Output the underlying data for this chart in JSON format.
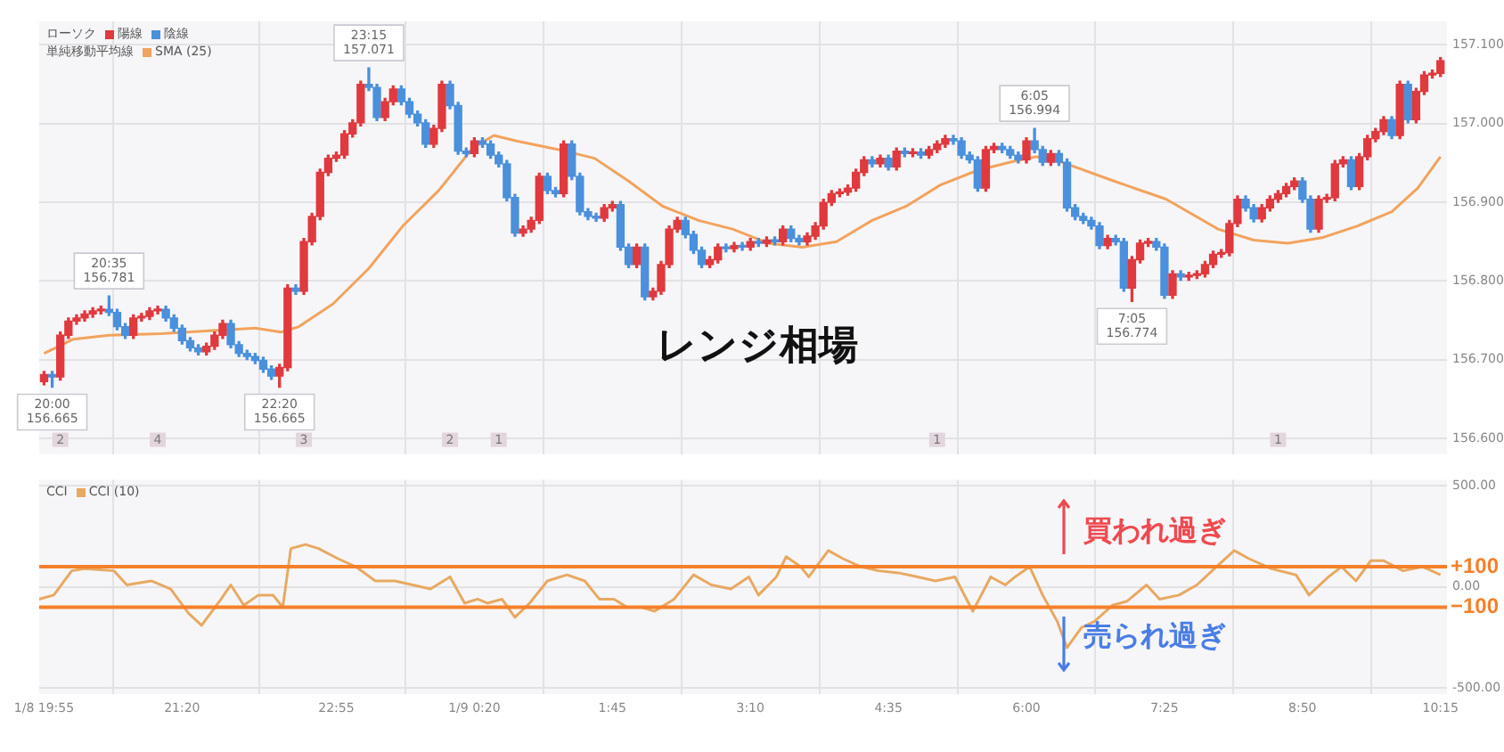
{
  "chart_data": [
    {
      "type": "candlestick",
      "xlim": [
        "--01-08T19:52",
        "--01-09T10:19"
      ],
      "xticks": [
        {
          "value": "--01-08T19:55",
          "label": null
        },
        {
          "value": "--01-08T21:20",
          "label": null
        },
        {
          "value": "--01-08T22:55",
          "label": null
        },
        {
          "value": "--01-09T00:20",
          "label": null
        },
        {
          "value": "--01-09T01:45",
          "label": null
        },
        {
          "value": "--01-09T03:10",
          "label": null
        },
        {
          "value": "--01-09T04:35",
          "label": null
        },
        {
          "value": "--01-09T06:00",
          "label": null
        },
        {
          "value": "--01-09T07:25",
          "label": null
        },
        {
          "value": "--01-09T08:50",
          "label": null
        },
        {
          "value": "--01-09T10:15",
          "label": null
        }
      ],
      "ylim": [
        156.58,
        157.13
      ],
      "yticks": [
        {
          "value": 156.6,
          "label": "156.600"
        },
        {
          "value": 156.7,
          "label": "156.700"
        },
        {
          "value": 156.8,
          "label": "156.800"
        },
        {
          "value": 156.9,
          "label": "156.900"
        },
        {
          "value": 157.0,
          "label": "157.000"
        },
        {
          "value": 157.1,
          "label": "157.100"
        }
      ],
      "tick_labels": "y",
      "grid": true,
      "legend": "top left",
      "series": [
        {
          "name": "陽線",
          "color": "#e0393e",
          "x": [
            "--01-08T19:55",
            "--01-08T20:05",
            "--01-08T20:10",
            "--01-08T20:15",
            "--01-08T20:20",
            "--01-08T20:25",
            "--01-08T20:30",
            "--01-08T20:50",
            "--01-08T20:55",
            "--01-08T21:00",
            "--01-08T21:05",
            "--01-08T21:35",
            "--01-08T21:40",
            "--01-08T21:45",
            "--01-08T22:20",
            "--01-08T22:25",
            "--01-08T22:35",
            "--01-08T22:40",
            "--01-08T22:45",
            "--01-08T22:50",
            "--01-08T22:55",
            "--01-08T23:00",
            "--01-08T23:05",
            "--01-08T23:10",
            "--01-08T23:25",
            "--01-08T23:30",
            "--01-08T23:55",
            "--01-09T00:00",
            "--01-09T00:20",
            "--01-09T00:50",
            "--01-09T00:55",
            "--01-09T01:00",
            "--01-09T01:15",
            "--01-09T01:40",
            "--01-09T01:45",
            "--01-09T02:00",
            "--01-09T02:10",
            "--01-09T02:15",
            "--01-09T02:20",
            "--01-09T02:25",
            "--01-09T02:45",
            "--01-09T02:50",
            "--01-09T03:00",
            "--01-09T03:10",
            "--01-09T03:20",
            "--01-09T03:30",
            "--01-09T03:45",
            "--01-09T03:50",
            "--01-09T03:55",
            "--01-09T04:00",
            "--01-09T04:05",
            "--01-09T04:10",
            "--01-09T04:15",
            "--01-09T04:20",
            "--01-09T04:30",
            "--01-09T04:40",
            "--01-09T04:50",
            "--01-09T05:00",
            "--01-09T05:05",
            "--01-09T05:10",
            "--01-09T05:35",
            "--01-09T05:40",
            "--01-09T06:00",
            "--01-09T06:15",
            "--01-09T06:50",
            "--01-09T07:05",
            "--01-09T07:10",
            "--01-09T07:15",
            "--01-09T07:30",
            "--01-09T07:40",
            "--01-09T07:45",
            "--01-09T07:50",
            "--01-09T07:55",
            "--01-09T08:00",
            "--01-09T08:05",
            "--01-09T08:10",
            "--01-09T08:25",
            "--01-09T08:30",
            "--01-09T08:35",
            "--01-09T08:40",
            "--01-09T08:45",
            "--01-09T09:00",
            "--01-09T09:05",
            "--01-09T09:10",
            "--01-09T09:15",
            "--01-09T09:25",
            "--01-09T09:30",
            "--01-09T09:35",
            "--01-09T09:40",
            "--01-09T09:50",
            "--01-09T10:00",
            "--01-09T10:05",
            "--01-09T10:10",
            "--01-09T10:15"
          ],
          "ohlc": [
            [
              156.672,
              156.685,
              156.668,
              156.681
            ],
            [
              156.678,
              156.735,
              156.674,
              156.731
            ],
            [
              156.731,
              156.753,
              156.727,
              156.749
            ],
            [
              156.749,
              156.757,
              156.745,
              156.753
            ],
            [
              156.753,
              156.762,
              156.749,
              156.758
            ],
            [
              156.758,
              156.766,
              156.754,
              156.762
            ],
            [
              156.762,
              156.768,
              156.758,
              156.764
            ],
            [
              156.731,
              156.757,
              156.727,
              156.753
            ],
            [
              156.753,
              156.759,
              156.749,
              156.755
            ],
            [
              156.755,
              156.766,
              156.751,
              156.762
            ],
            [
              156.762,
              156.768,
              156.758,
              156.764
            ],
            [
              156.71,
              156.721,
              156.706,
              156.717
            ],
            [
              156.717,
              156.735,
              156.713,
              156.731
            ],
            [
              156.731,
              156.75,
              156.727,
              156.746
            ],
            [
              156.679,
              156.694,
              156.665,
              156.69
            ],
            [
              156.69,
              156.795,
              156.686,
              156.791
            ],
            [
              156.787,
              156.854,
              156.783,
              156.85
            ],
            [
              156.85,
              156.886,
              156.846,
              156.882
            ],
            [
              156.882,
              156.942,
              156.878,
              156.938
            ],
            [
              156.938,
              156.96,
              156.934,
              156.956
            ],
            [
              156.956,
              156.964,
              156.952,
              156.96
            ],
            [
              156.96,
              156.991,
              156.956,
              156.987
            ],
            [
              156.987,
              157.005,
              156.983,
              157.001
            ],
            [
              157.001,
              157.054,
              156.997,
              157.05
            ],
            [
              157.008,
              157.032,
              157.004,
              157.028
            ],
            [
              157.028,
              157.048,
              157.024,
              157.044
            ],
            [
              156.974,
              156.998,
              156.97,
              156.994
            ],
            [
              156.994,
              157.054,
              156.99,
              157.05
            ],
            [
              156.962,
              156.982,
              156.958,
              156.978
            ],
            [
              156.861,
              156.87,
              156.857,
              156.866
            ],
            [
              156.866,
              156.881,
              156.862,
              156.877
            ],
            [
              156.877,
              156.937,
              156.873,
              156.933
            ],
            [
              156.911,
              156.978,
              156.907,
              156.974
            ],
            [
              156.88,
              156.897,
              156.876,
              156.893
            ],
            [
              156.893,
              156.901,
              156.889,
              156.897
            ],
            [
              156.821,
              156.847,
              156.817,
              156.843
            ],
            [
              156.78,
              156.791,
              156.776,
              156.787
            ],
            [
              156.787,
              156.825,
              156.783,
              156.821
            ],
            [
              156.821,
              156.87,
              156.817,
              156.866
            ],
            [
              156.866,
              156.881,
              156.862,
              156.877
            ],
            [
              156.821,
              156.831,
              156.817,
              156.827
            ],
            [
              156.827,
              156.847,
              156.823,
              156.843
            ],
            [
              156.841,
              156.849,
              156.837,
              156.845
            ],
            [
              156.843,
              156.854,
              156.839,
              156.85
            ],
            [
              156.848,
              156.856,
              156.844,
              156.852
            ],
            [
              156.85,
              156.87,
              156.846,
              156.866
            ],
            [
              156.85,
              156.861,
              156.846,
              156.857
            ],
            [
              156.857,
              156.874,
              156.853,
              156.87
            ],
            [
              156.87,
              156.904,
              156.866,
              156.9
            ],
            [
              156.9,
              156.915,
              156.896,
              156.911
            ],
            [
              156.911,
              156.917,
              156.907,
              156.913
            ],
            [
              156.913,
              156.922,
              156.909,
              156.918
            ],
            [
              156.918,
              156.942,
              156.914,
              156.938
            ],
            [
              156.938,
              156.958,
              156.934,
              156.954
            ],
            [
              156.949,
              156.96,
              156.945,
              156.956
            ],
            [
              156.945,
              156.969,
              156.941,
              156.965
            ],
            [
              156.962,
              156.968,
              156.958,
              156.964
            ],
            [
              156.96,
              156.971,
              156.956,
              156.967
            ],
            [
              156.967,
              156.978,
              156.963,
              156.974
            ],
            [
              156.974,
              156.985,
              156.97,
              156.981
            ],
            [
              156.918,
              156.971,
              156.914,
              156.967
            ],
            [
              156.967,
              156.975,
              156.963,
              156.971
            ],
            [
              156.954,
              156.982,
              156.95,
              156.978
            ],
            [
              156.951,
              156.966,
              156.947,
              156.962
            ],
            [
              156.845,
              156.858,
              156.841,
              156.854
            ],
            [
              156.791,
              156.831,
              156.774,
              156.827
            ],
            [
              156.827,
              156.852,
              156.823,
              156.848
            ],
            [
              156.848,
              156.854,
              156.844,
              156.85
            ],
            [
              156.782,
              156.813,
              156.778,
              156.809
            ],
            [
              156.805,
              156.811,
              156.801,
              156.807
            ],
            [
              156.807,
              156.813,
              156.803,
              156.809
            ],
            [
              156.809,
              156.825,
              156.805,
              156.821
            ],
            [
              156.821,
              156.838,
              156.817,
              156.834
            ],
            [
              156.834,
              156.84,
              156.83,
              156.836
            ],
            [
              156.836,
              156.877,
              156.832,
              156.873
            ],
            [
              156.873,
              156.908,
              156.869,
              156.904
            ],
            [
              156.879,
              156.897,
              156.875,
              156.893
            ],
            [
              156.893,
              156.908,
              156.889,
              156.904
            ],
            [
              156.904,
              156.915,
              156.9,
              156.911
            ],
            [
              156.911,
              156.924,
              156.907,
              156.92
            ],
            [
              156.92,
              156.931,
              156.916,
              156.927
            ],
            [
              156.866,
              156.908,
              156.862,
              156.904
            ],
            [
              156.904,
              156.91,
              156.9,
              156.906
            ],
            [
              156.906,
              156.953,
              156.902,
              156.949
            ],
            [
              156.949,
              156.958,
              156.945,
              156.954
            ],
            [
              156.92,
              156.962,
              156.916,
              156.958
            ],
            [
              156.958,
              156.985,
              156.954,
              156.981
            ],
            [
              156.981,
              156.994,
              156.977,
              156.99
            ],
            [
              156.99,
              157.009,
              156.986,
              157.005
            ],
            [
              156.985,
              157.054,
              156.981,
              157.05
            ],
            [
              157.005,
              157.045,
              157.001,
              157.041
            ],
            [
              157.041,
              157.066,
              157.037,
              157.062
            ],
            [
              157.062,
              157.068,
              157.058,
              157.064
            ],
            [
              157.064,
              157.084,
              157.06,
              157.08
            ]
          ]
        },
        {
          "name": "陰線",
          "color": "#4a90dc",
          "x": [
            "--01-08T20:00",
            "--01-08T20:35",
            "--01-08T20:40",
            "--01-08T20:45",
            "--01-08T21:10",
            "--01-08T21:15",
            "--01-08T21:20",
            "--01-08T21:25",
            "--01-08T21:30",
            "--01-08T21:50",
            "--01-08T21:55",
            "--01-08T22:00",
            "--01-08T22:05",
            "--01-08T22:10",
            "--01-08T22:15",
            "--01-08T22:30",
            "--01-08T23:15",
            "--01-08T23:20",
            "--01-08T23:35",
            "--01-08T23:40",
            "--01-08T23:45",
            "--01-08T23:50",
            "--01-09T00:05",
            "--01-09T00:10",
            "--01-09T00:15",
            "--01-09T00:25",
            "--01-09T00:30",
            "--01-09T00:35",
            "--01-09T00:40",
            "--01-09T00:45",
            "--01-09T01:05",
            "--01-09T01:10",
            "--01-09T01:20",
            "--01-09T01:25",
            "--01-09T01:30",
            "--01-09T01:35",
            "--01-09T01:50",
            "--01-09T01:55",
            "--01-09T02:05",
            "--01-09T02:30",
            "--01-09T02:35",
            "--01-09T02:40",
            "--01-09T02:55",
            "--01-09T03:05",
            "--01-09T03:15",
            "--01-09T03:25",
            "--01-09T03:35",
            "--01-09T03:40",
            "--01-09T04:25",
            "--01-09T04:35",
            "--01-09T04:45",
            "--01-09T04:55",
            "--01-09T05:15",
            "--01-09T05:20",
            "--01-09T05:25",
            "--01-09T05:30",
            "--01-09T05:45",
            "--01-09T05:50",
            "--01-09T05:55",
            "--01-09T06:05",
            "--01-09T06:10",
            "--01-09T06:20",
            "--01-09T06:25",
            "--01-09T06:30",
            "--01-09T06:35",
            "--01-09T06:40",
            "--01-09T06:45",
            "--01-09T06:55",
            "--01-09T07:00",
            "--01-09T07:20",
            "--01-09T07:25",
            "--01-09T07:35",
            "--01-09T08:15",
            "--01-09T08:20",
            "--01-09T08:50",
            "--01-09T08:55",
            "--01-09T09:20",
            "--01-09T09:45",
            "--01-09T09:55"
          ],
          "ohlc": [
            [
              156.681,
              156.685,
              156.665,
              156.678
            ],
            [
              156.764,
              156.781,
              156.756,
              156.76
            ],
            [
              156.76,
              156.764,
              156.738,
              156.742
            ],
            [
              156.742,
              156.746,
              156.727,
              156.731
            ],
            [
              156.764,
              156.768,
              156.749,
              156.753
            ],
            [
              156.753,
              156.757,
              156.736,
              156.74
            ],
            [
              156.74,
              156.744,
              156.72,
              156.724
            ],
            [
              156.724,
              156.728,
              156.711,
              156.715
            ],
            [
              156.715,
              156.719,
              156.706,
              156.71
            ],
            [
              156.746,
              156.75,
              156.715,
              156.719
            ],
            [
              156.719,
              156.723,
              156.704,
              156.708
            ],
            [
              156.708,
              156.712,
              156.7,
              156.704
            ],
            [
              156.704,
              156.708,
              156.695,
              156.699
            ],
            [
              156.699,
              156.703,
              156.684,
              156.688
            ],
            [
              156.688,
              156.692,
              156.675,
              156.679
            ],
            [
              156.791,
              156.795,
              156.783,
              156.787
            ],
            [
              157.05,
              157.071,
              157.042,
              157.046
            ],
            [
              157.046,
              157.05,
              157.004,
              157.008
            ],
            [
              157.044,
              157.048,
              157.024,
              157.028
            ],
            [
              157.028,
              157.032,
              157.008,
              157.012
            ],
            [
              157.012,
              157.016,
              156.997,
              157.001
            ],
            [
              157.001,
              157.005,
              156.97,
              156.974
            ],
            [
              157.05,
              157.054,
              157.019,
              157.023
            ],
            [
              157.023,
              157.027,
              156.961,
              156.965
            ],
            [
              156.965,
              156.969,
              156.958,
              156.962
            ],
            [
              156.978,
              156.982,
              156.97,
              156.974
            ],
            [
              156.974,
              156.978,
              156.956,
              156.96
            ],
            [
              156.96,
              156.964,
              156.945,
              156.949
            ],
            [
              156.949,
              156.953,
              156.902,
              156.906
            ],
            [
              156.906,
              156.91,
              156.857,
              156.861
            ],
            [
              156.933,
              156.937,
              156.911,
              156.915
            ],
            [
              156.915,
              156.919,
              156.907,
              156.911
            ],
            [
              156.974,
              156.978,
              156.929,
              156.933
            ],
            [
              156.933,
              156.937,
              156.884,
              156.888
            ],
            [
              156.888,
              156.892,
              156.878,
              156.882
            ],
            [
              156.882,
              156.886,
              156.876,
              156.88
            ],
            [
              156.897,
              156.901,
              156.839,
              156.843
            ],
            [
              156.843,
              156.847,
              156.817,
              156.821
            ],
            [
              156.843,
              156.847,
              156.776,
              156.78
            ],
            [
              156.877,
              156.881,
              156.855,
              156.859
            ],
            [
              156.859,
              156.863,
              156.835,
              156.839
            ],
            [
              156.839,
              156.843,
              156.817,
              156.821
            ],
            [
              156.843,
              156.847,
              156.837,
              156.841
            ],
            [
              156.845,
              156.849,
              156.839,
              156.843
            ],
            [
              156.85,
              156.854,
              156.844,
              156.848
            ],
            [
              156.852,
              156.856,
              156.846,
              156.85
            ],
            [
              156.866,
              156.87,
              156.85,
              156.854
            ],
            [
              156.854,
              156.858,
              156.846,
              156.85
            ],
            [
              156.954,
              156.958,
              156.945,
              156.949
            ],
            [
              156.956,
              156.96,
              156.941,
              156.945
            ],
            [
              156.965,
              156.969,
              156.958,
              156.962
            ],
            [
              156.964,
              156.968,
              156.956,
              156.96
            ],
            [
              156.981,
              156.985,
              156.974,
              156.978
            ],
            [
              156.978,
              156.982,
              156.956,
              156.96
            ],
            [
              156.96,
              156.964,
              156.95,
              156.954
            ],
            [
              156.954,
              156.958,
              156.914,
              156.918
            ],
            [
              156.971,
              156.975,
              156.963,
              156.967
            ],
            [
              156.967,
              156.971,
              156.956,
              156.96
            ],
            [
              156.96,
              156.964,
              156.95,
              156.954
            ],
            [
              156.978,
              156.994,
              156.963,
              156.967
            ],
            [
              156.967,
              156.971,
              156.947,
              156.951
            ],
            [
              156.962,
              156.966,
              156.947,
              156.951
            ],
            [
              156.951,
              156.955,
              156.889,
              156.893
            ],
            [
              156.893,
              156.897,
              156.878,
              156.882
            ],
            [
              156.882,
              156.886,
              156.873,
              156.877
            ],
            [
              156.877,
              156.881,
              156.866,
              156.87
            ],
            [
              156.87,
              156.874,
              156.841,
              156.845
            ],
            [
              156.854,
              156.858,
              156.846,
              156.85
            ],
            [
              156.85,
              156.854,
              156.787,
              156.791
            ],
            [
              156.85,
              156.854,
              156.839,
              156.843
            ],
            [
              156.843,
              156.847,
              156.778,
              156.782
            ],
            [
              156.809,
              156.813,
              156.801,
              156.805
            ],
            [
              156.904,
              156.908,
              156.889,
              156.893
            ],
            [
              156.893,
              156.897,
              156.875,
              156.879
            ],
            [
              156.927,
              156.931,
              156.9,
              156.904
            ],
            [
              156.904,
              156.908,
              156.862,
              156.866
            ],
            [
              156.954,
              156.958,
              156.916,
              156.92
            ],
            [
              157.005,
              157.009,
              156.981,
              156.985
            ],
            [
              157.05,
              157.054,
              157.001,
              157.005
            ]
          ]
        },
        {
          "type": "line",
          "name": "SMA (25)",
          "color": "#f2a35e",
          "x": [
            "--01-08T19:55",
            "--01-08T20:13",
            "--01-08T20:35",
            "--01-08T21:07",
            "--01-08T21:39",
            "--01-08T22:05",
            "--01-08T22:21",
            "--01-08T22:32",
            "--01-08T22:53",
            "--01-08T23:15",
            "--01-08T23:36",
            "--01-08T23:58",
            "--01-09T00:19",
            "--01-09T00:32",
            "--01-09T00:46",
            "--01-09T01:12",
            "--01-09T01:34",
            "--01-09T01:55",
            "--01-09T02:16",
            "--01-09T02:38",
            "--01-09T02:59",
            "--01-09T03:21",
            "--01-09T03:42",
            "--01-09T04:03",
            "--01-09T04:25",
            "--01-09T04:46",
            "--01-09T05:07",
            "--01-09T05:29",
            "--01-09T05:50",
            "--01-09T06:06",
            "--01-09T06:22",
            "--01-09T06:54",
            "--01-09T07:26",
            "--01-09T07:58",
            "--01-09T08:20",
            "--01-09T08:41",
            "--01-09T09:02",
            "--01-09T09:24",
            "--01-09T09:45",
            "--01-09T10:01",
            "--01-09T10:15"
          ],
          "values": [
            156.708,
            156.726,
            156.731,
            156.733,
            156.737,
            156.74,
            156.735,
            156.742,
            156.771,
            156.816,
            156.87,
            156.915,
            156.969,
            156.985,
            156.978,
            156.967,
            156.956,
            156.927,
            156.895,
            156.877,
            156.866,
            156.848,
            156.843,
            156.85,
            156.877,
            156.895,
            156.922,
            156.94,
            156.951,
            156.958,
            156.951,
            156.927,
            156.904,
            156.866,
            156.852,
            156.848,
            156.855,
            156.87,
            156.888,
            156.918,
            156.958
          ]
        }
      ],
      "annotations": [
        "ローソク",
        "単純移動平均線",
        "レンジ相場",
        {
          "text": "20:00\n156.665",
          "x": "--01-08T20:00",
          "y": 156.665
        },
        {
          "text": "20:35\n156.781",
          "x": "--01-08T20:35",
          "y": 156.781
        },
        {
          "text": "22:20\n156.665",
          "x": "--01-08T22:20",
          "y": 156.665
        },
        {
          "text": "23:15\n157.071",
          "x": "--01-08T23:15",
          "y": 157.071
        },
        {
          "text": "6:05\n156.994",
          "x": "--01-09T06:05",
          "y": 156.994
        },
        {
          "text": "7:05\n156.774",
          "x": "--01-09T07:05",
          "y": 156.774
        },
        {
          "text": "2",
          "x": "--01-08T20:05"
        },
        {
          "text": "4",
          "x": "--01-08T21:05"
        },
        {
          "text": "3",
          "x": "--01-08T22:35"
        },
        {
          "text": "2",
          "x": "--01-09T00:05"
        },
        {
          "text": "1",
          "x": "--01-09T00:35"
        },
        {
          "text": "1",
          "x": "--01-09T05:05"
        },
        {
          "text": "1",
          "x": "--01-09T08:35"
        }
      ]
    },
    {
      "type": "line",
      "xlim": [
        "--01-08T19:52",
        "--01-09T10:19"
      ],
      "xticks": [
        {
          "value": "--01-08T19:55",
          "label": "1/8 19:55"
        },
        {
          "value": "--01-08T21:20",
          "label": "21:20"
        },
        {
          "value": "--01-08T22:55",
          "label": "22:55"
        },
        {
          "value": "--01-09T00:20",
          "label": "1/9 0:20"
        },
        {
          "value": "--01-09T01:45",
          "label": "1:45"
        },
        {
          "value": "--01-09T03:10",
          "label": "3:10"
        },
        {
          "value": "--01-09T04:35",
          "label": "4:35"
        },
        {
          "value": "--01-09T06:00",
          "label": "6:00"
        },
        {
          "value": "--01-09T07:25",
          "label": "7:25"
        },
        {
          "value": "--01-09T08:50",
          "label": "8:50"
        },
        {
          "value": "--01-09T10:15",
          "label": "10:15"
        }
      ],
      "ylim": [
        -530,
        530
      ],
      "yticks": [
        {
          "value": -500,
          "label": "-500.00"
        },
        {
          "value": 0,
          "label": "0.00"
        },
        {
          "value": 500,
          "label": "500.00"
        }
      ],
      "grid": true,
      "legend": "top left",
      "series": [
        {
          "name": "CCI (10)",
          "color": "#e8a962",
          "x": [
            "--01-08T19:52",
            "--01-08T20:01",
            "--01-08T20:12",
            "--01-08T20:20",
            "--01-08T20:38",
            "--01-08T20:46",
            "--01-08T21:01",
            "--01-08T21:13",
            "--01-08T21:24",
            "--01-08T21:32",
            "--01-08T21:44",
            "--01-08T21:50",
            "--01-08T21:58",
            "--01-08T22:07",
            "--01-08T22:16",
            "--01-08T22:22",
            "--01-08T22:27",
            "--01-08T22:36",
            "--01-08T22:44",
            "--01-08T22:56",
            "--01-08T23:07",
            "--01-08T23:19",
            "--01-08T23:31",
            "--01-08T23:42",
            "--01-08T23:53",
            "--01-09T00:05",
            "--01-09T00:14",
            "--01-09T00:22",
            "--01-09T00:28",
            "--01-09T00:37",
            "--01-09T00:45",
            "--01-09T00:54",
            "--01-09T01:05",
            "--01-09T01:17",
            "--01-09T01:28",
            "--01-09T01:37",
            "--01-09T01:46",
            "--01-09T01:54",
            "--01-09T02:03",
            "--01-09T02:11",
            "--01-09T02:23",
            "--01-09T02:35",
            "--01-09T02:46",
            "--01-09T02:58",
            "--01-09T03:09",
            "--01-09T03:15",
            "--01-09T03:26",
            "--01-09T03:32",
            "--01-09T03:41",
            "--01-09T03:46",
            "--01-09T03:58",
            "--01-09T04:07",
            "--01-09T04:18",
            "--01-09T04:29",
            "--01-09T04:41",
            "--01-09T04:53",
            "--01-09T05:04",
            "--01-09T05:16",
            "--01-09T05:27",
            "--01-09T05:38",
            "--01-09T05:47",
            "--01-09T05:53",
            "--01-09T06:02",
            "--01-09T06:10",
            "--01-09T06:19",
            "--01-09T06:25",
            "--01-09T06:34",
            "--01-09T06:42",
            "--01-09T06:53",
            "--01-09T07:02",
            "--01-09T07:14",
            "--01-09T07:22",
            "--01-09T07:34",
            "--01-09T07:45",
            "--01-09T07:57",
            "--01-09T08:08",
            "--01-09T08:17",
            "--01-09T08:31",
            "--01-09T08:46",
            "--01-09T08:54",
            "--01-09T09:06",
            "--01-09T09:14",
            "--01-09T09:23",
            "--01-09T09:32",
            "--01-09T09:40",
            "--01-09T09:52",
            "--01-09T10:04",
            "--01-09T10:15"
          ],
          "values": [
            -60,
            -40,
            80,
            90,
            80,
            10,
            30,
            -10,
            -130,
            -190,
            -60,
            10,
            -90,
            -40,
            -40,
            -100,
            190,
            210,
            190,
            140,
            100,
            30,
            30,
            10,
            -10,
            50,
            -80,
            -60,
            -80,
            -60,
            -150,
            -80,
            30,
            60,
            30,
            -60,
            -60,
            -100,
            -100,
            -120,
            -60,
            60,
            10,
            -10,
            50,
            -40,
            50,
            150,
            100,
            50,
            180,
            140,
            100,
            80,
            70,
            50,
            30,
            50,
            -120,
            50,
            10,
            50,
            100,
            -40,
            -170,
            -300,
            -200,
            -170,
            -90,
            -70,
            10,
            -60,
            -40,
            10,
            100,
            180,
            140,
            90,
            60,
            -40,
            50,
            100,
            30,
            130,
            130,
            80,
            100,
            60
          ]
        }
      ],
      "ref_lines": [
        {
          "axis": "y",
          "value": 100,
          "label": "+100",
          "color": "#f5802a"
        },
        {
          "axis": "y",
          "value": -100,
          "label": "−100",
          "color": "#f5802a"
        }
      ],
      "annotations": [
        "CCI",
        "買われ過ぎ",
        "売られ過ぎ"
      ]
    }
  ]
}
